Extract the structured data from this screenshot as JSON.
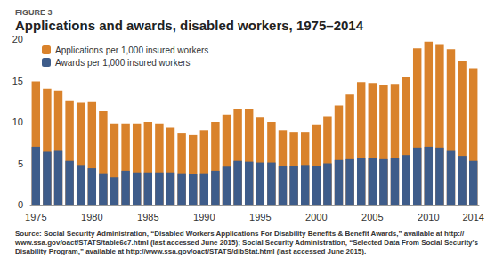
{
  "chart_data": {
    "type": "bar",
    "subtitle": "FIGURE 3",
    "title": "Applications and awards, disabled workers, 1975–2014",
    "source": "Source: Social Security Administration, “Disabled Workers Applications For Disability Benefits & Benefit Awards,” available at http://www.ssa.gov/oact/STATS/table6c7.html (last accessed June 2015); Social Security Administration, “Selected Data From Social Security's Disability Program,” available at http://www.ssa.gov/oact/STATS/dibStat.html (last accessed June 2015).",
    "categories": [
      "1975",
      null,
      null,
      null,
      null,
      "1980",
      null,
      null,
      null,
      null,
      "1985",
      null,
      null,
      null,
      null,
      "1990",
      null,
      null,
      null,
      null,
      "1995",
      null,
      null,
      null,
      null,
      "2000",
      null,
      null,
      null,
      null,
      "2005",
      null,
      null,
      null,
      null,
      "2010",
      null,
      null,
      null,
      "2014"
    ],
    "series": [
      {
        "name": "Applications per 1,000 insured workers",
        "color": "#d9822b",
        "values": [
          14.9,
          14.0,
          13.8,
          12.6,
          12.3,
          12.4,
          11.3,
          9.8,
          9.8,
          9.8,
          10.0,
          9.8,
          9.3,
          8.7,
          8.4,
          9.0,
          10.0,
          10.9,
          11.5,
          11.5,
          10.5,
          10.0,
          9.0,
          8.8,
          8.8,
          9.7,
          10.7,
          12.0,
          13.3,
          14.8,
          14.7,
          14.5,
          14.6,
          15.4,
          18.9,
          19.7,
          19.3,
          18.8,
          17.3,
          16.5
        ]
      },
      {
        "name": "Awards per 1,000 insured workers",
        "color": "#3e5c8a",
        "values": [
          7.0,
          6.4,
          6.5,
          5.3,
          4.8,
          4.4,
          3.8,
          3.3,
          4.1,
          3.9,
          3.9,
          3.9,
          3.9,
          3.8,
          3.7,
          3.8,
          4.1,
          4.6,
          5.3,
          5.2,
          5.1,
          5.1,
          4.7,
          4.7,
          4.8,
          4.7,
          5.0,
          5.4,
          5.5,
          5.6,
          5.6,
          5.5,
          5.7,
          6.0,
          6.9,
          7.0,
          6.9,
          6.5,
          5.9,
          5.3
        ]
      }
    ],
    "ylim": [
      0,
      20
    ],
    "yticks": [
      0,
      5,
      10,
      15,
      20
    ],
    "stacked": false,
    "grid": false,
    "legend": "top-left"
  }
}
